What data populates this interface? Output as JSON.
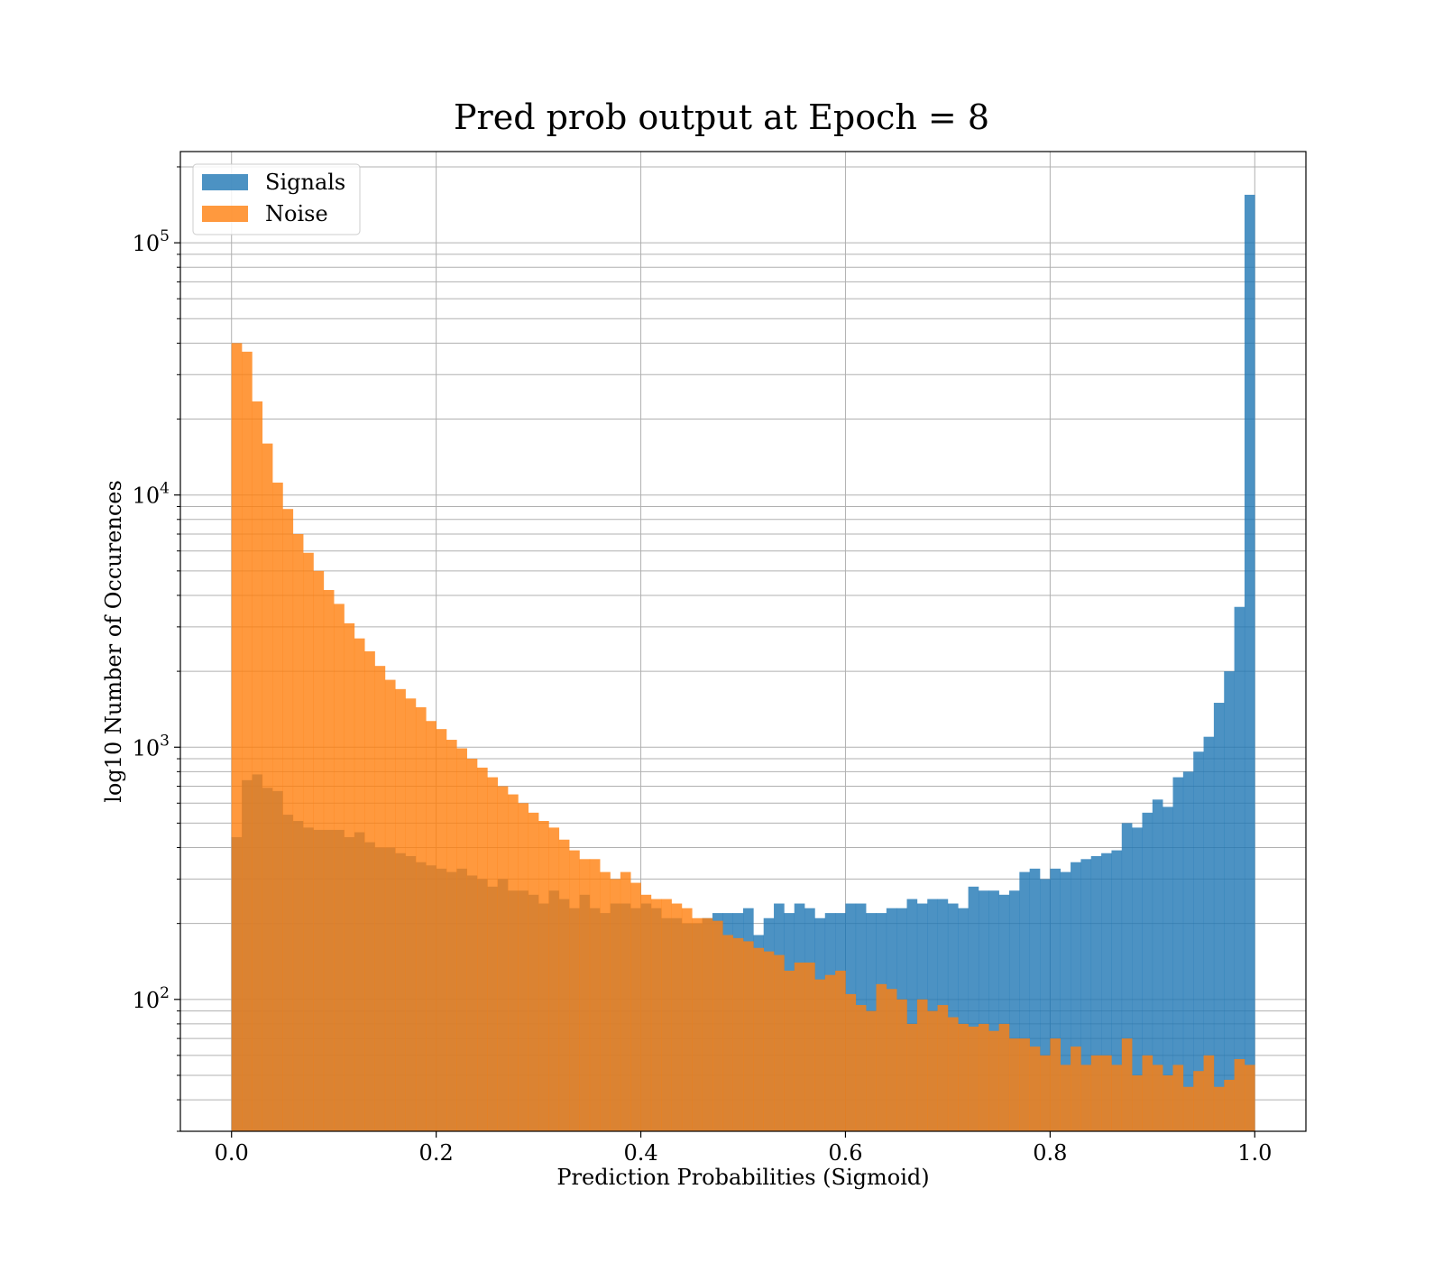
{
  "chart_data": {
    "type": "bar",
    "title": "Pred prob output at Epoch = 8",
    "xlabel": "Prediction Probabilities (Sigmoid)",
    "ylabel": "log10 Number of Occurences",
    "yscale": "log",
    "xlim": [
      -0.05,
      1.05
    ],
    "ylim": [
      30,
      230000
    ],
    "grid": true,
    "legend_position": "top-left",
    "x_ticks": [
      0.0,
      0.2,
      0.4,
      0.6,
      0.8,
      1.0
    ],
    "x_tick_labels": [
      "0.0",
      "0.2",
      "0.4",
      "0.6",
      "0.8",
      "1.0"
    ],
    "y_ticks": [
      100,
      1000,
      10000,
      100000
    ],
    "y_tick_labels": [
      {
        "base": "10",
        "exp": "2"
      },
      {
        "base": "10",
        "exp": "3"
      },
      {
        "base": "10",
        "exp": "4"
      },
      {
        "base": "10",
        "exp": "5"
      }
    ],
    "bins": 100,
    "bin_range": [
      0,
      1
    ],
    "series": [
      {
        "name": "Signals",
        "color": "#1f77b4",
        "opacity": 0.8,
        "values": [
          440,
          740,
          780,
          690,
          670,
          540,
          510,
          480,
          470,
          470,
          470,
          440,
          460,
          420,
          400,
          400,
          380,
          370,
          350,
          340,
          330,
          320,
          330,
          310,
          300,
          280,
          300,
          270,
          270,
          260,
          240,
          270,
          250,
          230,
          260,
          230,
          220,
          240,
          240,
          230,
          240,
          230,
          210,
          210,
          200,
          200,
          210,
          220,
          220,
          220,
          230,
          180,
          210,
          240,
          220,
          240,
          230,
          210,
          220,
          220,
          240,
          240,
          220,
          220,
          230,
          230,
          250,
          240,
          250,
          250,
          240,
          230,
          280,
          270,
          270,
          260,
          270,
          320,
          330,
          300,
          330,
          320,
          350,
          360,
          370,
          380,
          390,
          500,
          480,
          550,
          620,
          580,
          760,
          800,
          960,
          1100,
          1500,
          2000,
          3600,
          155000
        ]
      },
      {
        "name": "Noise",
        "color": "#ff7f0e",
        "opacity": 0.8,
        "values": [
          40000,
          37000,
          23500,
          16000,
          11200,
          8800,
          7000,
          5900,
          5000,
          4200,
          3700,
          3100,
          2700,
          2400,
          2100,
          1850,
          1700,
          1560,
          1440,
          1270,
          1180,
          1070,
          990,
          900,
          830,
          760,
          700,
          650,
          600,
          550,
          510,
          480,
          430,
          390,
          360,
          360,
          320,
          300,
          320,
          290,
          260,
          250,
          250,
          240,
          230,
          210,
          210,
          205,
          180,
          175,
          170,
          160,
          155,
          150,
          130,
          140,
          140,
          120,
          125,
          130,
          105,
          95,
          90,
          115,
          110,
          100,
          80,
          100,
          90,
          95,
          85,
          80,
          78,
          80,
          75,
          80,
          70,
          70,
          65,
          60,
          70,
          55,
          65,
          55,
          60,
          60,
          55,
          70,
          50,
          60,
          55,
          50,
          55,
          45,
          52,
          60,
          45,
          48,
          58,
          55
        ]
      }
    ]
  }
}
